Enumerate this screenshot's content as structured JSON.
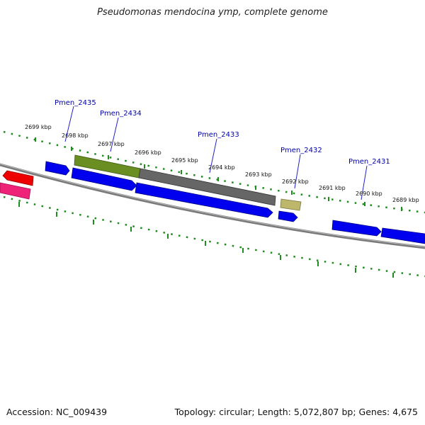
{
  "title": "Pseudomonas mendocina ymp, complete genome",
  "footer": {
    "accession": "Accession: NC_009439",
    "summary": "Topology: circular; Length: 5,072,807 bp; Genes: 4,675"
  },
  "kbp_labels": [
    "2699 kbp",
    "2698 kbp",
    "2697 kbp",
    "2696 kbp",
    "2695 kbp",
    "2694 kbp",
    "2693 kbp",
    "2692 kbp",
    "2691 kbp",
    "2690 kbp",
    "2689 kbp"
  ],
  "gene_labels": [
    "Pmen_2435",
    "Pmen_2434",
    "Pmen_2433",
    "Pmen_2432",
    "Pmen_2431"
  ],
  "colors": {
    "backbone": "#808080",
    "ticks": "#1e8c1e",
    "cds": "#0000ee",
    "label": "#0000aa",
    "red": "#ee0000",
    "pink": "#ee2277",
    "olive": "#6b8e23",
    "grey": "#666666",
    "khaki": "#bdb76b"
  }
}
